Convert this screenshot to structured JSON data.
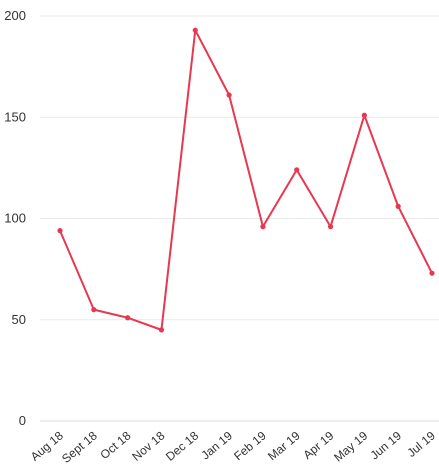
{
  "chart_data": {
    "type": "line",
    "categories": [
      "Aug 18",
      "Sept 18",
      "Oct 18",
      "Nov 18",
      "Dec 18",
      "Jan 19",
      "Feb 19",
      "Mar 19",
      "Apr 19",
      "May 19",
      "Jun 19",
      "Jul 19"
    ],
    "series": [
      {
        "values": [
          94,
          55,
          51,
          45,
          193,
          161,
          96,
          124,
          96,
          151,
          106,
          73
        ],
        "color": "#e8384f"
      }
    ],
    "ylim": [
      0,
      200
    ],
    "yticks": [
      0,
      50,
      100,
      150,
      200
    ],
    "grid": true,
    "legend": "none",
    "title": "",
    "xlabel": "",
    "ylabel": ""
  }
}
